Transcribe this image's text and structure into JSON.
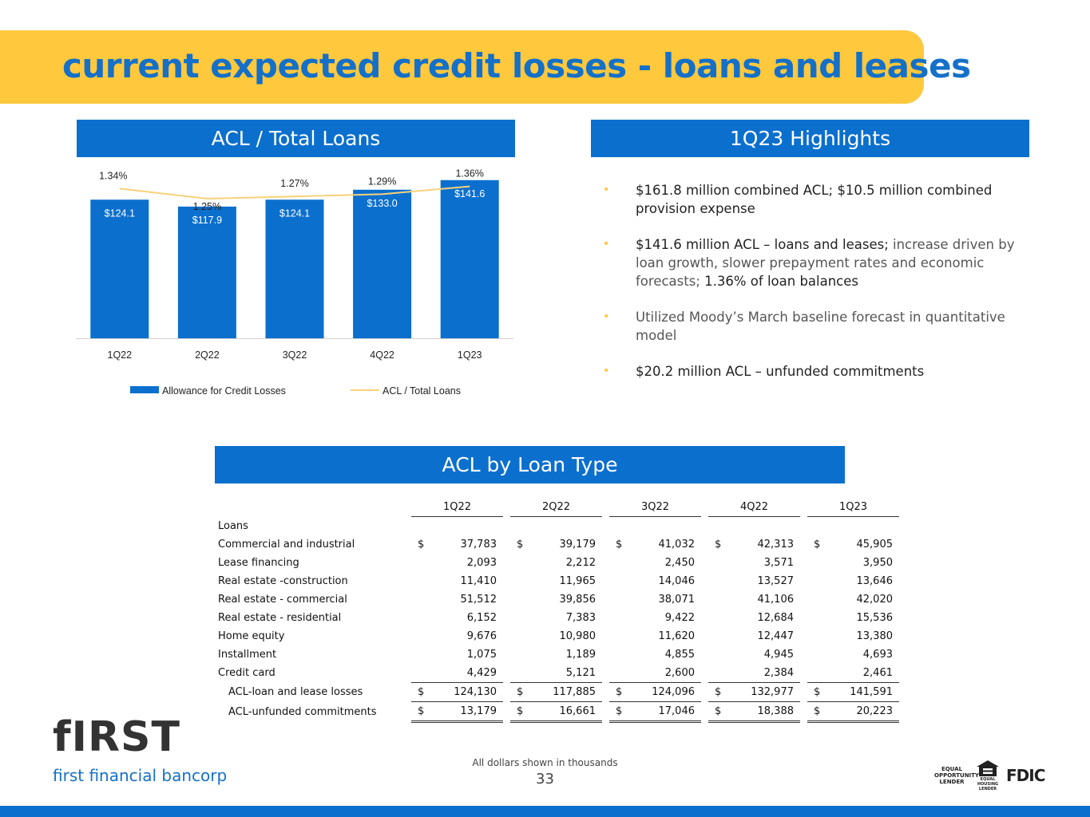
{
  "page_title": "current expected credit losses - loans and leases",
  "chart_section_title": "ACL / Total Loans",
  "highlights_title": "1Q23 Highlights",
  "highlights": [
    {
      "strong": "$161.8 million combined ACL; $10.5 million combined provision expense",
      "muted": "",
      "tail": ""
    },
    {
      "strong": "$141.6 million ACL – loans and leases;",
      "muted": " increase driven by loan growth, slower prepayment rates and economic forecasts;",
      "tail": " 1.36% of loan balances"
    },
    {
      "strong": "",
      "muted": "Utilized Moody’s March baseline forecast in quantitative model",
      "tail": ""
    },
    {
      "strong": "$20.2 million ACL – unfunded commitments",
      "muted": "",
      "tail": ""
    }
  ],
  "chart_data": {
    "type": "bar",
    "categories": [
      "1Q22",
      "2Q22",
      "3Q22",
      "4Q22",
      "1Q23"
    ],
    "series": [
      {
        "name": "Allowance for Credit Losses",
        "type": "bar",
        "values": [
          124.1,
          117.9,
          124.1,
          133.0,
          141.6
        ],
        "labels": [
          "$124.1",
          "$117.9",
          "$124.1",
          "$133.0",
          "$141.6"
        ],
        "color": "#0B6FCE"
      },
      {
        "name": "ACL / Total Loans",
        "type": "line",
        "values": [
          1.34,
          1.25,
          1.27,
          1.29,
          1.36
        ],
        "labels": [
          "1.34%",
          "1.25%",
          "1.27%",
          "1.29%",
          "1.36%"
        ],
        "color": "#F7D27A"
      }
    ],
    "bar_ylim": [
      0,
      160
    ],
    "line_ylim": [
      0,
      1.6
    ],
    "legend_position": "bottom",
    "grid": false
  },
  "table": {
    "title": "ACL by Loan Type",
    "columns": [
      "1Q22",
      "2Q22",
      "3Q22",
      "4Q22",
      "1Q23"
    ],
    "section_label": "Loans",
    "rows": [
      {
        "label": "Commercial and industrial",
        "currency": true,
        "values": [
          "37,783",
          "39,179",
          "41,032",
          "42,313",
          "45,905"
        ]
      },
      {
        "label": "Lease financing",
        "values": [
          "2,093",
          "2,212",
          "2,450",
          "3,571",
          "3,950"
        ]
      },
      {
        "label": "Real estate -construction",
        "values": [
          "11,410",
          "11,965",
          "14,046",
          "13,527",
          "13,646"
        ]
      },
      {
        "label": "Real estate - commercial",
        "values": [
          "51,512",
          "39,856",
          "38,071",
          "41,106",
          "42,020"
        ]
      },
      {
        "label": "Real estate - residential",
        "values": [
          "6,152",
          "7,383",
          "9,422",
          "12,684",
          "15,536"
        ]
      },
      {
        "label": "Home equity",
        "values": [
          "9,676",
          "10,980",
          "11,620",
          "12,447",
          "13,380"
        ]
      },
      {
        "label": "Installment",
        "values": [
          "1,075",
          "1,189",
          "4,855",
          "4,945",
          "4,693"
        ]
      },
      {
        "label": "Credit card",
        "values": [
          "4,429",
          "5,121",
          "2,600",
          "2,384",
          "2,461"
        ]
      }
    ],
    "total_row": {
      "label": "ACL-loan and lease losses",
      "values": [
        "124,130",
        "117,885",
        "124,096",
        "132,977",
        "141,591"
      ]
    },
    "unfunded_row": {
      "label": "ACL-unfunded commitments",
      "values": [
        "13,179",
        "16,661",
        "17,046",
        "18,388",
        "20,223"
      ]
    },
    "currency_symbol": "$"
  },
  "footnote": "All dollars shown in thousands",
  "page_number": "33",
  "logo": {
    "brand": "fIRST",
    "tagline": "first financial bancorp"
  },
  "badges": {
    "equal_opportunity": "EQUAL OPPORTUNITY LENDER",
    "equal_housing": "EQUAL HOUSING LENDER",
    "fdic": "FDIC"
  },
  "colors": {
    "brand_blue": "#0B6FCE",
    "title_blue": "#1470C8",
    "accent_yellow": "#FFC83D"
  }
}
